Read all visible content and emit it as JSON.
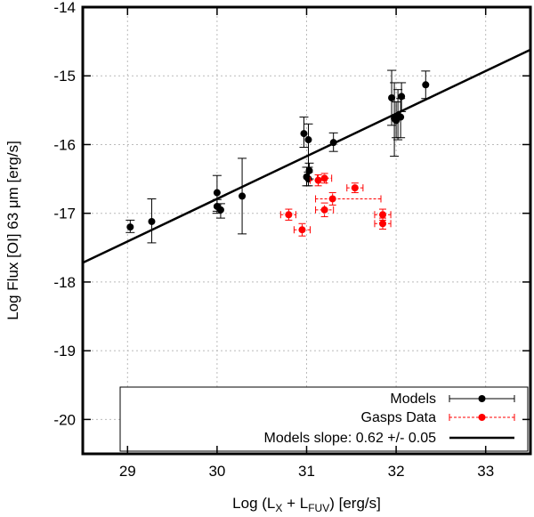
{
  "chart_data": {
    "type": "scatter",
    "xlabel": {
      "prefix": "Log (L",
      "sub1": "X",
      "mid": " + L",
      "sub2": "FUV",
      "suffix": ") [erg/s]"
    },
    "ylabel": "Log Flux [OI] 63 μm [erg/s]",
    "xlim": [
      28.5,
      33.5
    ],
    "ylim": [
      -20.5,
      -14
    ],
    "xticks": [
      29,
      30,
      31,
      32,
      33
    ],
    "xtick_labels": [
      "29",
      "30",
      "31",
      "32",
      "33"
    ],
    "yticks": [
      -20,
      -19,
      -18,
      -17,
      -16,
      -15,
      -14
    ],
    "ytick_labels": [
      "-20",
      "-19",
      "-18",
      "-17",
      "-16",
      "-15",
      "-14"
    ],
    "grid": true,
    "legend_position": "bottom-right",
    "colors": {
      "models": "#000000",
      "gasps": "#ff0000",
      "fit": "#000000",
      "grid": "#bbbbbb"
    },
    "series": [
      {
        "name": "Models",
        "style": "black-points-with-yerr",
        "points": [
          {
            "x": 29.03,
            "y": -17.2,
            "ylo": -17.28,
            "yhi": -17.1
          },
          {
            "x": 29.27,
            "y": -17.12,
            "ylo": -17.43,
            "yhi": -16.79
          },
          {
            "x": 30.0,
            "y": -16.7,
            "ylo": -16.97,
            "yhi": -16.45
          },
          {
            "x": 30.0,
            "y": -16.9,
            "ylo": -17.0,
            "yhi": -16.8
          },
          {
            "x": 30.04,
            "y": -16.95,
            "ylo": -17.07,
            "yhi": -16.86
          },
          {
            "x": 30.28,
            "y": -16.75,
            "ylo": -17.3,
            "yhi": -16.2
          },
          {
            "x": 30.97,
            "y": -15.84,
            "ylo": -16.04,
            "yhi": -15.6
          },
          {
            "x": 31.02,
            "y": -15.93,
            "ylo": -16.33,
            "yhi": -15.7
          },
          {
            "x": 31.0,
            "y": -16.47,
            "ylo": -16.6,
            "yhi": -16.33
          },
          {
            "x": 31.02,
            "y": -16.5,
            "ylo": -16.6,
            "yhi": -16.4
          },
          {
            "x": 31.03,
            "y": -16.38,
            "ylo": -16.5,
            "yhi": -16.27
          },
          {
            "x": 31.3,
            "y": -15.97,
            "ylo": -16.1,
            "yhi": -15.83
          },
          {
            "x": 31.95,
            "y": -15.32,
            "ylo": -15.72,
            "yhi": -14.92
          },
          {
            "x": 31.98,
            "y": -15.62,
            "ylo": -16.17,
            "yhi": -15.1
          },
          {
            "x": 32.0,
            "y": -15.65,
            "ylo": -15.9,
            "yhi": -15.38
          },
          {
            "x": 32.02,
            "y": -15.58,
            "ylo": -15.93,
            "yhi": -15.2
          },
          {
            "x": 32.05,
            "y": -15.6,
            "ylo": -15.9,
            "yhi": -15.33
          },
          {
            "x": 32.06,
            "y": -15.3,
            "ylo": -15.52,
            "yhi": -15.1
          },
          {
            "x": 32.33,
            "y": -15.13,
            "ylo": -15.33,
            "yhi": -14.93
          }
        ]
      },
      {
        "name": "Gasps Data",
        "style": "red-points-with-xyerr-dashed",
        "points": [
          {
            "x": 30.8,
            "y": -17.02,
            "xlo": 30.71,
            "xhi": 30.88,
            "ylo": -17.1,
            "yhi": -16.94
          },
          {
            "x": 30.95,
            "y": -17.24,
            "xlo": 30.86,
            "xhi": 31.04,
            "ylo": -17.33,
            "yhi": -17.15
          },
          {
            "x": 31.13,
            "y": -16.52,
            "xlo": 31.04,
            "xhi": 31.22,
            "ylo": -16.6,
            "yhi": -16.44
          },
          {
            "x": 31.2,
            "y": -16.49,
            "xlo": 31.12,
            "xhi": 31.28,
            "ylo": -16.56,
            "yhi": -16.42
          },
          {
            "x": 31.2,
            "y": -16.95,
            "xlo": 31.1,
            "xhi": 31.3,
            "ylo": -17.05,
            "yhi": -16.85
          },
          {
            "x": 31.29,
            "y": -16.79,
            "xlo": 31.1,
            "xhi": 31.83,
            "ylo": -16.88,
            "yhi": -16.7
          },
          {
            "x": 31.54,
            "y": -16.63,
            "xlo": 31.45,
            "xhi": 31.63,
            "ylo": -16.7,
            "yhi": -16.56
          },
          {
            "x": 31.85,
            "y": -17.02,
            "xlo": 31.76,
            "xhi": 31.94,
            "ylo": -17.1,
            "yhi": -16.94
          },
          {
            "x": 31.85,
            "y": -17.15,
            "xlo": 31.76,
            "xhi": 31.94,
            "ylo": -17.23,
            "yhi": -17.07
          }
        ]
      }
    ],
    "fit_line": {
      "name": "Models slope: 0.62 +/- 0.05",
      "x0": 28.5,
      "y0": -17.72,
      "x1": 33.5,
      "y1": -14.62
    },
    "legend": [
      {
        "label": "Models",
        "kind": "models"
      },
      {
        "label": "Gasps Data",
        "kind": "gasps"
      },
      {
        "label": "Models slope: 0.62 +/- 0.05",
        "kind": "fit"
      }
    ]
  }
}
